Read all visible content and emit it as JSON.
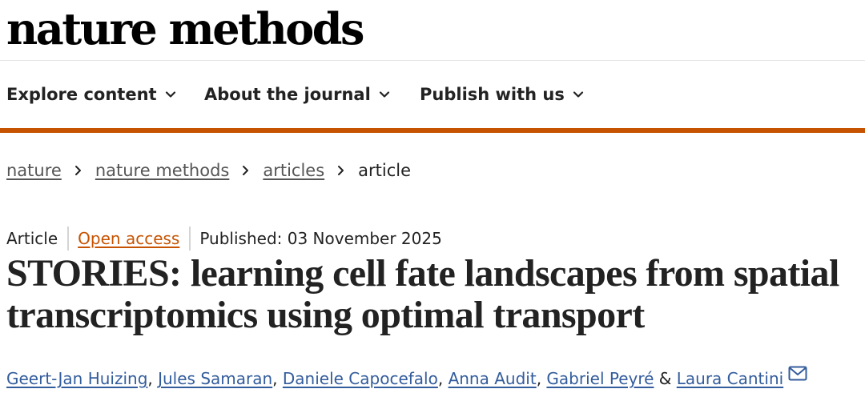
{
  "site": {
    "logo_text": "nature methods"
  },
  "nav": {
    "items": [
      {
        "label": "Explore content"
      },
      {
        "label": "About the journal"
      },
      {
        "label": "Publish with us"
      }
    ]
  },
  "breadcrumb": {
    "items": [
      {
        "label": "nature"
      },
      {
        "label": "nature methods"
      },
      {
        "label": "articles"
      }
    ],
    "current": "article"
  },
  "article": {
    "type": "Article",
    "access": "Open access",
    "published": "Published: 03 November 2025",
    "title": "STORIES: learning cell fate landscapes from spatial transcriptomics using optimal transport",
    "authors": [
      "Geert-Jan Huizing",
      "Jules Samaran",
      "Daniele Capocefalo",
      "Anna Audit",
      "Gabriel Peyré",
      "Laura Cantini"
    ],
    "author_separator": ", ",
    "last_author_separator": " & "
  },
  "colors": {
    "accent": "#c65301",
    "link": "#335c9c",
    "text": "#222222"
  },
  "icons": {
    "nav_chevron": "chevron-down-icon",
    "breadcrumb_separator": "chevron-right-icon",
    "corresponding_author": "envelope-icon"
  }
}
